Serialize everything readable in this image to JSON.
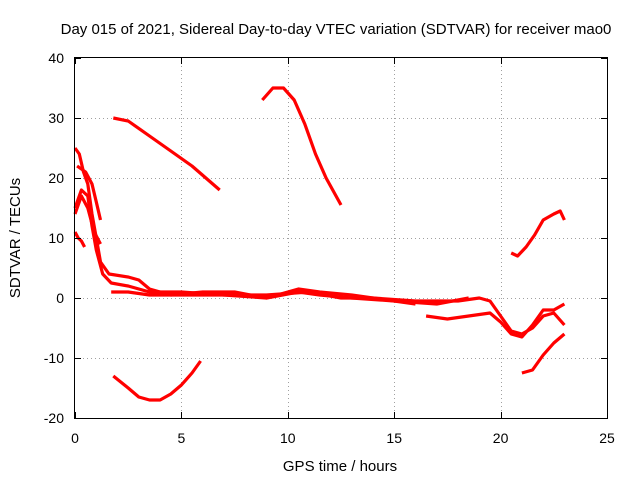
{
  "chart_data": {
    "type": "line",
    "title": "Day 015 of 2021, Sidereal Day-to-day VTEC variation (SDTVAR) for receiver mao0",
    "xlabel": "GPS time / hours",
    "ylabel": "SDTVAR / TECUs",
    "xlim": [
      0,
      25
    ],
    "ylim": [
      -20,
      40
    ],
    "x_ticks": [
      0,
      5,
      10,
      15,
      20,
      25
    ],
    "y_ticks": [
      -20,
      -10,
      0,
      10,
      20,
      30,
      40
    ],
    "x_tick_labels": [
      "0",
      "5",
      "10",
      "15",
      "20",
      "25"
    ],
    "y_tick_labels": [
      "-20",
      "-10",
      "0",
      "10",
      "20",
      "30",
      "40"
    ],
    "grid": true,
    "legend": "none",
    "color": "#ff0000",
    "series": [
      {
        "name": "s1",
        "x": [
          0.0,
          0.3,
          0.6,
          0.8,
          1.0,
          1.3,
          1.7,
          2.5,
          3.5,
          5.0,
          7.0,
          9.0,
          11.0,
          12.5,
          14.0,
          16.0,
          18.0,
          19.0,
          19.5,
          20.0,
          20.5,
          21.0,
          21.5,
          22.0,
          22.5,
          23.0
        ],
        "y": [
          15,
          18,
          17,
          12,
          8,
          4,
          2.5,
          2,
          1,
          1,
          0.5,
          0.5,
          1,
          0,
          0,
          -0.5,
          -0.5,
          0,
          -0.5,
          -3,
          -5.5,
          -6,
          -5,
          -3,
          -2.5,
          -4.5
        ]
      },
      {
        "name": "s2",
        "x": [
          0.0,
          0.2,
          0.4,
          0.6,
          0.8,
          1.0,
          1.2,
          1.6,
          2.5,
          3.0,
          3.5,
          4.5,
          6.0,
          7.5,
          9.0,
          10.5,
          11.5,
          13.0,
          15.0,
          17.0,
          18.5
        ],
        "y": [
          25,
          24,
          21,
          19,
          14,
          10,
          6,
          4,
          3.5,
          3,
          1.5,
          0.5,
          1,
          1,
          0,
          1.5,
          1,
          0.5,
          -0.5,
          -1,
          0
        ]
      },
      {
        "name": "s3",
        "x": [
          0.0,
          0.3,
          0.6,
          0.9,
          1.2
        ],
        "y": [
          14,
          17,
          15,
          11,
          9
        ]
      },
      {
        "name": "s4",
        "x": [
          0.0,
          0.15,
          0.3,
          0.45
        ],
        "y": [
          11,
          10,
          9.5,
          8.5
        ]
      },
      {
        "name": "s5",
        "x": [
          0.1,
          0.5,
          0.8,
          1.0,
          1.2
        ],
        "y": [
          22,
          21,
          19,
          16,
          13
        ]
      },
      {
        "name": "s6",
        "x": [
          1.7,
          2.5,
          3.5,
          5.0,
          7.0,
          9.0,
          10.5,
          11.5,
          13.0,
          15.0,
          16.0
        ],
        "y": [
          1,
          1,
          0.5,
          0.5,
          0.5,
          0,
          1,
          0.5,
          0,
          -0.5,
          -1
        ]
      },
      {
        "name": "s7",
        "x": [
          16.5,
          17.5,
          18.5,
          19.5,
          20.0,
          20.5,
          21.0,
          21.5,
          22.0,
          22.5,
          23.0
        ],
        "y": [
          -3,
          -3.5,
          -3,
          -2.5,
          -4,
          -6,
          -6.5,
          -4.5,
          -2,
          -2,
          -1
        ]
      },
      {
        "name": "s8",
        "x": [
          1.8,
          2.5,
          3.5,
          4.5,
          5.5,
          6.8
        ],
        "y": [
          30,
          29.5,
          27,
          24.5,
          22,
          18
        ]
      },
      {
        "name": "s9",
        "x": [
          8.8,
          9.3,
          9.8,
          10.3,
          10.8,
          11.3,
          11.8,
          12.5
        ],
        "y": [
          33,
          35,
          35,
          33,
          29,
          24,
          20,
          15.5
        ]
      },
      {
        "name": "s10",
        "x": [
          1.8,
          2.5,
          3.0,
          3.5,
          4.0,
          4.5,
          5.0,
          5.5,
          5.9
        ],
        "y": [
          -13,
          -15,
          -16.5,
          -17,
          -17,
          -16,
          -14.5,
          -12.5,
          -10.5
        ]
      },
      {
        "name": "s11",
        "x": [
          20.5,
          20.8,
          21.2,
          21.6,
          22.0,
          22.5,
          22.8,
          23.0
        ],
        "y": [
          7.5,
          7,
          8.5,
          10.5,
          13,
          14,
          14.5,
          13
        ]
      },
      {
        "name": "s12",
        "x": [
          21.0,
          21.5,
          22.0,
          22.5,
          23.0
        ],
        "y": [
          -12.5,
          -12,
          -9.5,
          -7.5,
          -6
        ]
      }
    ]
  }
}
